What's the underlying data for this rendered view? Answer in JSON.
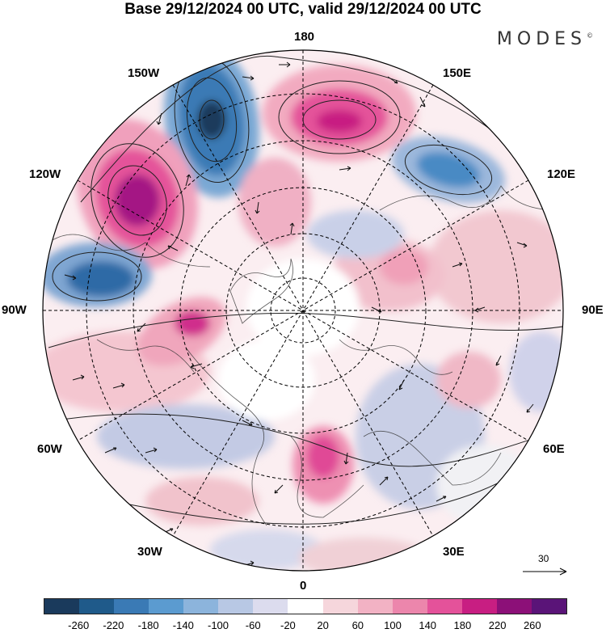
{
  "header": {
    "title": "Base 29/12/2024 00 UTC, valid 29/12/2024 00 UTC",
    "brand": "MODES"
  },
  "map": {
    "longitude_labels": {
      "top": "180",
      "bottom": "0",
      "left": "90W",
      "right": "90E",
      "upper_left_1": "150W",
      "upper_left_2": "120W",
      "upper_right_1": "150E",
      "upper_right_2": "120E",
      "lower_left_1": "60W",
      "lower_left_2": "30W",
      "lower_right_1": "60E",
      "lower_right_2": "30E"
    },
    "reference_vector": "30",
    "anomaly_centers": [
      {
        "name": "low-150w",
        "sign": "negative",
        "level": -220
      },
      {
        "name": "high-180",
        "sign": "positive",
        "level": 180
      },
      {
        "name": "high-120w",
        "sign": "positive",
        "level": 220
      },
      {
        "name": "low-120e",
        "sign": "negative",
        "level": -140
      },
      {
        "name": "low-100w",
        "sign": "negative",
        "level": -180
      },
      {
        "name": "high-90w",
        "sign": "positive",
        "level": 180
      },
      {
        "name": "high-europe",
        "sign": "positive",
        "level": 140
      },
      {
        "name": "low-siberia",
        "sign": "negative",
        "level": -60
      },
      {
        "name": "low-atlantic",
        "sign": "negative",
        "level": -100
      }
    ]
  },
  "colorbar": {
    "colors": [
      "#1a3a5c",
      "#1f5a8a",
      "#3a7ab5",
      "#5b9bd0",
      "#8cb4dc",
      "#b8c8e4",
      "#dcdcee",
      "#ffffff",
      "#f6d6dc",
      "#f2b2c4",
      "#ec86ac",
      "#e4529a",
      "#c81e82",
      "#8c1078",
      "#5a1478"
    ],
    "ticks": [
      "-260",
      "-220",
      "-180",
      "-140",
      "-100",
      "-60",
      "-20",
      "20",
      "60",
      "100",
      "140",
      "180",
      "220",
      "260"
    ]
  }
}
